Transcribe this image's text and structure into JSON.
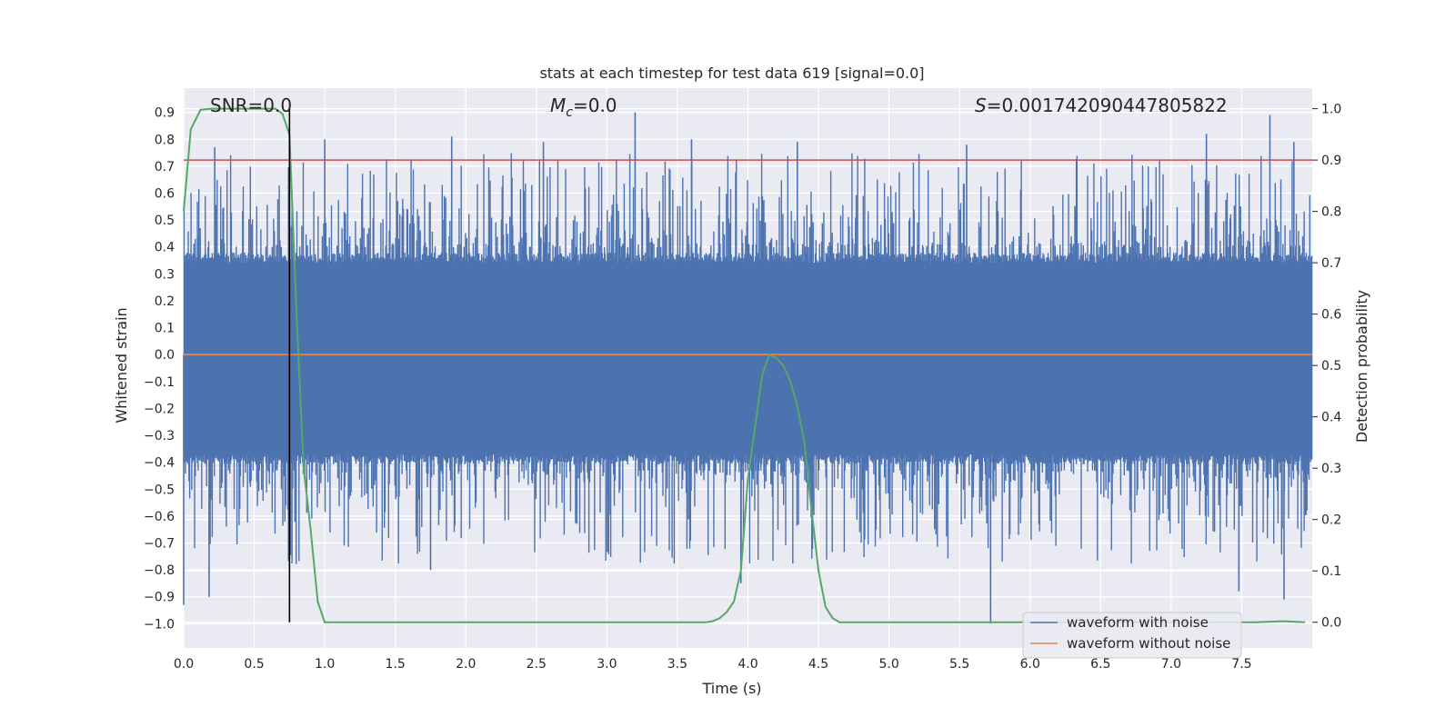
{
  "chart_data": {
    "type": "line",
    "title": "stats at each timestep for test data 619 [signal=0.0]",
    "xlabel": "Time (s)",
    "ylabel_left": "Whitened strain",
    "ylabel_right": "Detection probability",
    "xlim": [
      0.0,
      8.0
    ],
    "ylim_left": [
      -1.09,
      0.99
    ],
    "ylim_right": [
      -0.05,
      1.04
    ],
    "x_ticks": [
      "0.0",
      "0.5",
      "1.0",
      "1.5",
      "2.0",
      "2.5",
      "3.0",
      "3.5",
      "4.0",
      "4.5",
      "5.0",
      "5.5",
      "6.0",
      "6.5",
      "7.0",
      "7.5"
    ],
    "y_left_ticks": [
      "0.9",
      "0.8",
      "0.7",
      "0.6",
      "0.5",
      "0.4",
      "0.3",
      "0.2",
      "0.1",
      "0.0",
      "−0.1",
      "−0.2",
      "−0.3",
      "−0.4",
      "−0.5",
      "−0.6",
      "−0.7",
      "−0.8",
      "−0.9",
      "−1.0"
    ],
    "y_right_ticks": [
      "1.0",
      "0.9",
      "0.8",
      "0.7",
      "0.6",
      "0.5",
      "0.4",
      "0.3",
      "0.2",
      "0.1",
      "0.0"
    ],
    "annotations": {
      "snr": "SNR=0.0",
      "mc_symbol": "M",
      "mc_sub": "c",
      "mc_value": "=0.0",
      "s_symbol": "S",
      "s_value": "=0.001742090447805822"
    },
    "threshold_probability": 0.9,
    "marker_time": 0.75,
    "series": [
      {
        "name": "waveform with noise",
        "color": "#4c72b0",
        "note": "dense whitened noise; core band approx -0.43 to 0.40, spikes up to 0.90 and down to -1.0",
        "core_range": [
          -0.43,
          0.4
        ],
        "peaks": [
          [
            0.22,
            0.77
          ],
          [
            0.75,
            0.8
          ],
          [
            1.0,
            0.8
          ],
          [
            1.9,
            0.81
          ],
          [
            2.55,
            0.79
          ],
          [
            3.2,
            0.9
          ],
          [
            3.6,
            0.8
          ],
          [
            4.35,
            0.79
          ],
          [
            5.55,
            0.78
          ],
          [
            7.25,
            0.82
          ],
          [
            7.7,
            0.89
          ],
          [
            7.87,
            0.79
          ]
        ],
        "troughs": [
          [
            0.0,
            -0.93
          ],
          [
            0.18,
            -0.9
          ],
          [
            1.75,
            -0.8
          ],
          [
            3.95,
            -0.85
          ],
          [
            5.72,
            -1.0
          ],
          [
            7.48,
            -0.88
          ],
          [
            7.8,
            -0.91
          ]
        ]
      },
      {
        "name": "waveform without noise",
        "color": "#dd8452",
        "x": [
          0.0,
          8.0
        ],
        "y": [
          0.0,
          0.0
        ]
      },
      {
        "name": "detection probability",
        "color": "#55a868",
        "axis": "right",
        "x": [
          0.0,
          0.05,
          0.12,
          0.2,
          0.3,
          0.5,
          0.65,
          0.7,
          0.75,
          0.8,
          0.85,
          0.9,
          0.95,
          1.0,
          1.5,
          2.0,
          2.5,
          3.0,
          3.5,
          3.7,
          3.75,
          3.8,
          3.85,
          3.9,
          3.95,
          4.0,
          4.05,
          4.1,
          4.15,
          4.2,
          4.25,
          4.3,
          4.35,
          4.4,
          4.45,
          4.5,
          4.55,
          4.6,
          4.65,
          4.7,
          5.0,
          6.0,
          7.0,
          7.6,
          7.8,
          7.95
        ],
        "y": [
          0.8,
          0.96,
          0.998,
          1.0,
          1.0,
          1.0,
          1.0,
          0.99,
          0.95,
          0.6,
          0.3,
          0.18,
          0.04,
          0.0,
          0.0,
          0.0,
          0.0,
          0.0,
          0.0,
          0.0,
          0.002,
          0.008,
          0.02,
          0.04,
          0.1,
          0.28,
          0.38,
          0.48,
          0.52,
          0.515,
          0.5,
          0.47,
          0.42,
          0.35,
          0.22,
          0.1,
          0.03,
          0.008,
          0.0,
          0.0,
          0.0,
          0.0,
          0.0,
          0.0,
          0.002,
          0.0
        ]
      }
    ],
    "legend": [
      "waveform with noise",
      "waveform without noise"
    ],
    "legend_position": "bottom-right"
  }
}
